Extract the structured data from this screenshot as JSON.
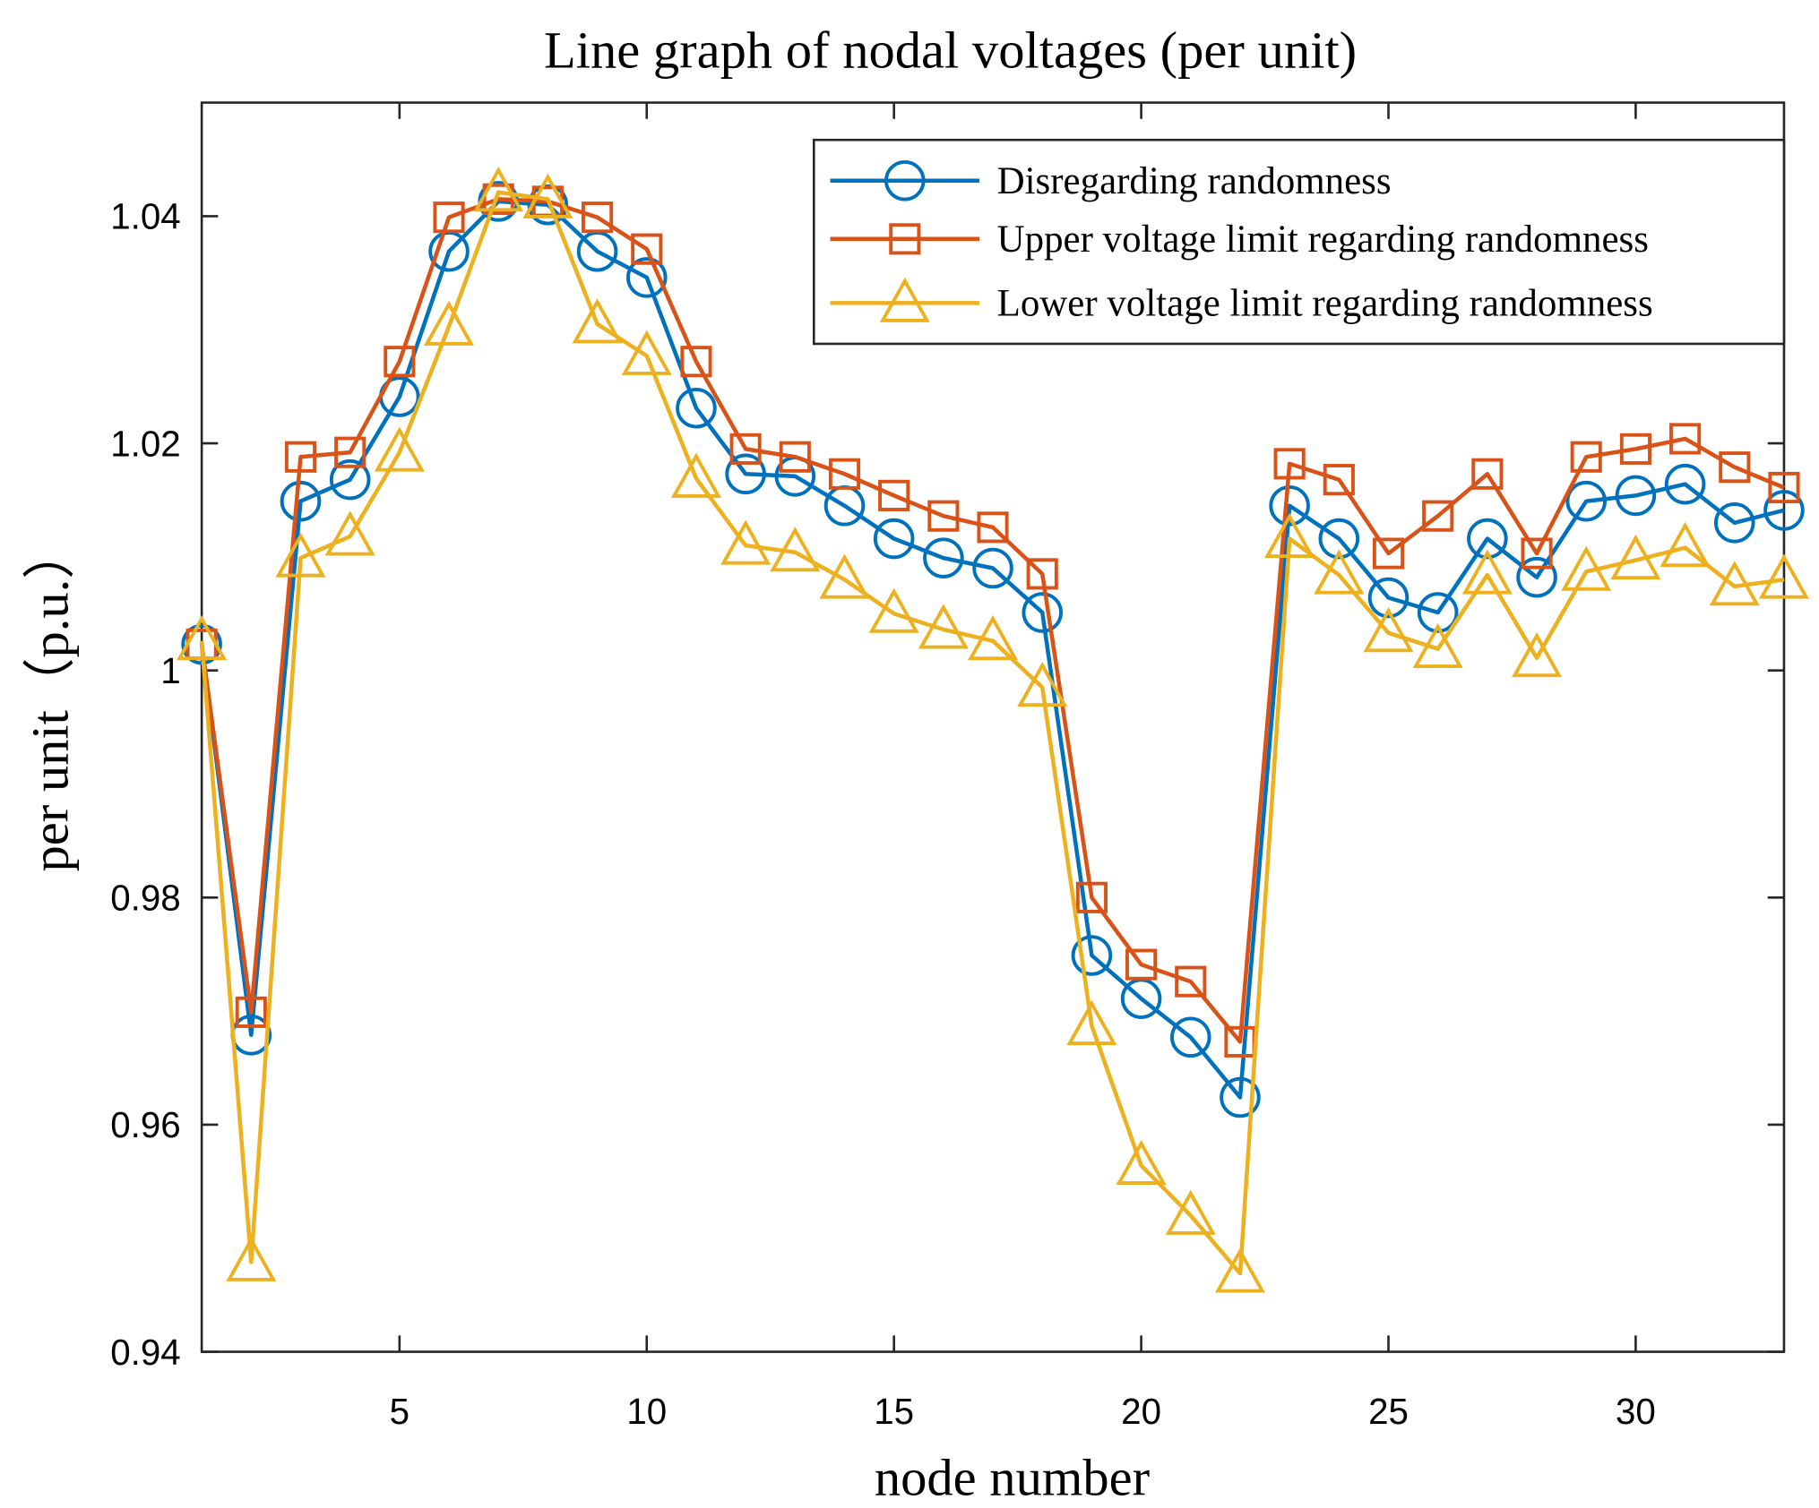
{
  "chart_data": {
    "type": "line",
    "title": "Line graph of nodal voltages (per unit)",
    "xlabel": "node number",
    "ylabel": "per unit（p.u.）",
    "xlim": [
      1,
      33
    ],
    "ylim": [
      0.94,
      1.05
    ],
    "xticks": [
      5,
      10,
      15,
      20,
      25,
      30
    ],
    "yticks": [
      0.94,
      0.96,
      0.98,
      1,
      1.02,
      1.04
    ],
    "ytick_labels": [
      "0.94",
      "0.96",
      "0.98",
      "1",
      "1.02",
      "1.04"
    ],
    "xtick_labels": [
      "5",
      "10",
      "15",
      "20",
      "25",
      "30"
    ],
    "grid": false,
    "legend_position": "top-right",
    "x": [
      1,
      2,
      3,
      4,
      5,
      6,
      7,
      8,
      9,
      10,
      11,
      12,
      13,
      14,
      15,
      16,
      17,
      18,
      19,
      20,
      21,
      22,
      23,
      24,
      25,
      26,
      27,
      28,
      29,
      30,
      31,
      32,
      33
    ],
    "series": [
      {
        "name": "Disregarding randomness",
        "color": "#0072BD",
        "marker": "circle",
        "values": [
          1.0023,
          0.9679,
          1.0149,
          1.0168,
          1.0241,
          1.0369,
          1.0413,
          1.041,
          1.0369,
          1.0346,
          1.0231,
          1.0173,
          1.0171,
          1.0145,
          1.0116,
          1.0099,
          1.009,
          1.0051,
          0.9749,
          0.9711,
          0.9677,
          0.9624,
          1.0145,
          1.0116,
          1.0064,
          1.0051,
          1.0116,
          1.0082,
          1.0149,
          1.0154,
          1.0164,
          1.013,
          1.0141
        ]
      },
      {
        "name": "Upper voltage limit regarding randomness",
        "color": "#D95319",
        "marker": "square",
        "values": [
          1.0023,
          0.9699,
          1.0188,
          1.0192,
          1.0272,
          1.0399,
          1.0415,
          1.0413,
          1.0399,
          1.0371,
          1.0272,
          1.0195,
          1.0188,
          1.0173,
          1.0154,
          1.0136,
          1.0126,
          1.0085,
          0.98,
          0.9741,
          0.9726,
          0.9673,
          1.0182,
          1.0168,
          1.0103,
          1.0136,
          1.0173,
          1.0103,
          1.0188,
          1.0195,
          1.0204,
          1.0179,
          1.0161
        ]
      },
      {
        "name": "Lower voltage limit regarding randomness",
        "color": "#EDB120",
        "marker": "triangle",
        "values": [
          1.0026,
          0.9479,
          1.0099,
          1.0118,
          1.0192,
          1.0303,
          1.0421,
          1.0415,
          1.0305,
          1.0277,
          1.0169,
          1.011,
          1.0104,
          1.008,
          1.005,
          1.0036,
          1.0026,
          0.9985,
          0.9687,
          0.9564,
          0.952,
          0.9469,
          1.0116,
          1.0084,
          1.0033,
          1.0019,
          1.0084,
          1.0011,
          1.0087,
          1.0097,
          1.0108,
          1.0074,
          1.008
        ]
      }
    ]
  }
}
